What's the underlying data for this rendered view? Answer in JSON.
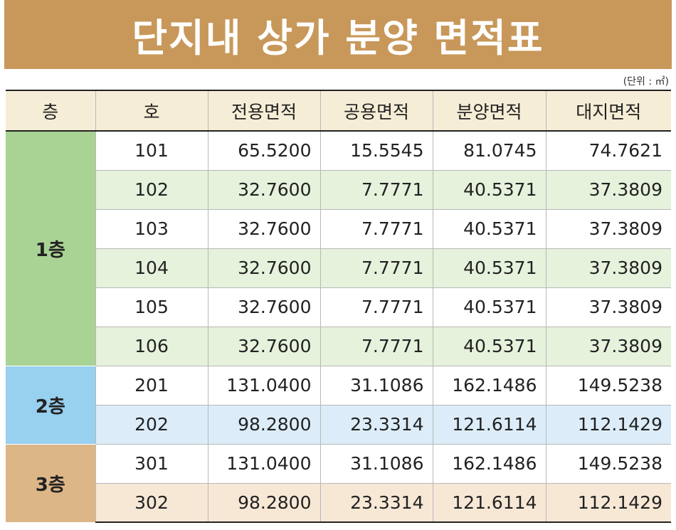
{
  "title": "단지내 상가 분양 면적표",
  "unit": "(단위 : ㎡)",
  "headers": [
    "층",
    "호",
    "전용면적",
    "공용면적",
    "분양면적",
    "대지면적"
  ],
  "colors": {
    "title_bg": "#c8985a",
    "floor1": "#a9d394",
    "floor2": "#98d0ef",
    "floor3": "#ddb688"
  },
  "floors": [
    {
      "label": "1층",
      "rows": [
        {
          "ho": "101",
          "exclusive": "65.5200",
          "common": "15.5545",
          "sale": "81.0745",
          "land": "74.7621"
        },
        {
          "ho": "102",
          "exclusive": "32.7600",
          "common": "7.7771",
          "sale": "40.5371",
          "land": "37.3809"
        },
        {
          "ho": "103",
          "exclusive": "32.7600",
          "common": "7.7771",
          "sale": "40.5371",
          "land": "37.3809"
        },
        {
          "ho": "104",
          "exclusive": "32.7600",
          "common": "7.7771",
          "sale": "40.5371",
          "land": "37.3809"
        },
        {
          "ho": "105",
          "exclusive": "32.7600",
          "common": "7.7771",
          "sale": "40.5371",
          "land": "37.3809"
        },
        {
          "ho": "106",
          "exclusive": "32.7600",
          "common": "7.7771",
          "sale": "40.5371",
          "land": "37.3809"
        }
      ]
    },
    {
      "label": "2층",
      "rows": [
        {
          "ho": "201",
          "exclusive": "131.0400",
          "common": "31.1086",
          "sale": "162.1486",
          "land": "149.5238"
        },
        {
          "ho": "202",
          "exclusive": "98.2800",
          "common": "23.3314",
          "sale": "121.6114",
          "land": "112.1429"
        }
      ]
    },
    {
      "label": "3층",
      "rows": [
        {
          "ho": "301",
          "exclusive": "131.0400",
          "common": "31.1086",
          "sale": "162.1486",
          "land": "149.5238"
        },
        {
          "ho": "302",
          "exclusive": "98.2800",
          "common": "23.3314",
          "sale": "121.6114",
          "land": "112.1429"
        }
      ]
    }
  ]
}
